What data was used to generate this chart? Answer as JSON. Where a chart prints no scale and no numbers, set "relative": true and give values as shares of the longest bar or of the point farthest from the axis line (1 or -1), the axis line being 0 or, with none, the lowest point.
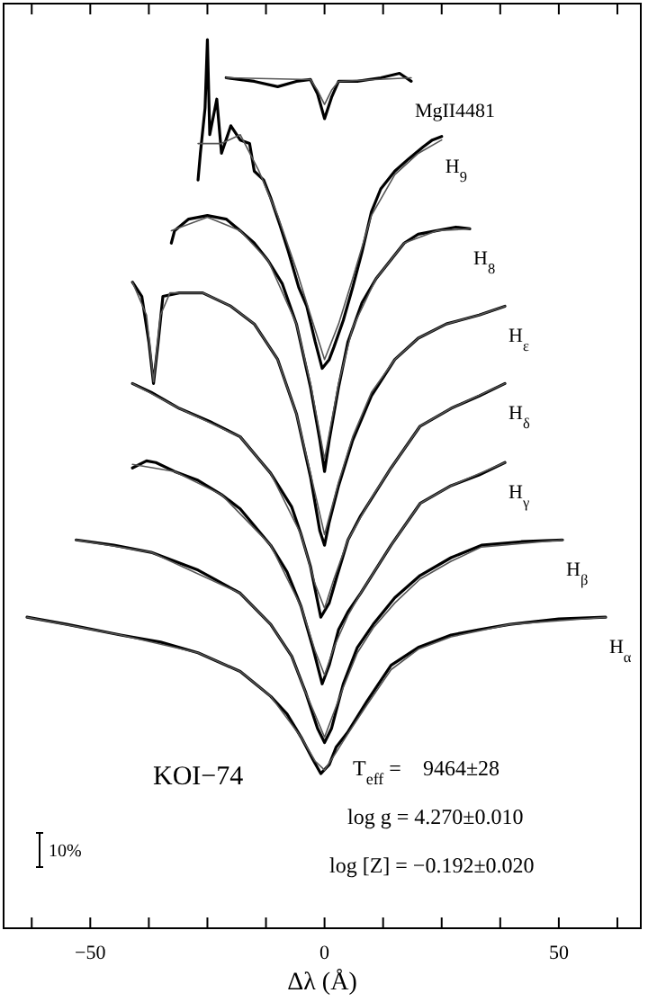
{
  "chart_data": {
    "type": "line",
    "relative": true,
    "xlabel": "Δλ (Å)",
    "xlim": [
      -68.5,
      67.5
    ],
    "xticks": [
      {
        "value": -62.5,
        "label": null
      },
      -50,
      {
        "value": -37.5,
        "label": null
      },
      {
        "value": -25,
        "label": null
      },
      {
        "value": -12.5,
        "label": null
      },
      0,
      {
        "value": 12.5,
        "label": null
      },
      {
        "value": 25,
        "label": null
      },
      {
        "value": 37.5,
        "label": null
      },
      50,
      {
        "value": 62.5,
        "label": null
      }
    ],
    "annotations": [
      "KOI−74",
      "T$_{eff}$ =    9464±28",
      "log g = 4.270±0.010",
      "log [Z] = −0.192±0.020",
      "10%"
    ],
    "series": [
      {
        "name": "MgII4481",
        "color": "#000000",
        "x": [
          -21,
          -15,
          -10,
          -6,
          -3,
          -1.5,
          0,
          1.5,
          3,
          7,
          12,
          16,
          18.5
        ],
        "values": [
          0.957,
          0.953,
          0.947,
          0.953,
          0.955,
          0.939,
          0.911,
          0.935,
          0.953,
          0.953,
          0.957,
          0.962,
          0.953
        ]
      },
      {
        "color": "#555555",
        "x": [
          -21,
          -3,
          -1.5,
          0,
          1.5,
          3,
          18.5
        ],
        "values": [
          0.957,
          0.955,
          0.943,
          0.927,
          0.943,
          0.953,
          0.957
        ]
      },
      {
        "name": "H$_{9}$",
        "color": "#000000",
        "x": [
          -27,
          -26.5,
          -25.5,
          -25,
          -24.5,
          -23,
          -22,
          -20,
          -18,
          -16,
          -15,
          -13,
          -11.5,
          -9.5,
          -7.7,
          -5.5,
          -3.8,
          -2,
          -0.5,
          1,
          2,
          4,
          6,
          8,
          10,
          12,
          15,
          18,
          21,
          23,
          25
        ],
        "values": [
          0.842,
          0.872,
          0.923,
          1,
          0.893,
          0.933,
          0.872,
          0.903,
          0.887,
          0.883,
          0.852,
          0.842,
          0.822,
          0.791,
          0.761,
          0.721,
          0.7,
          0.66,
          0.63,
          0.64,
          0.654,
          0.684,
          0.721,
          0.761,
          0.806,
          0.832,
          0.852,
          0.866,
          0.879,
          0.887,
          0.891
        ]
      },
      {
        "color": "#555555",
        "x": [
          -27,
          -22,
          -18,
          -14,
          -10,
          -6,
          -3,
          0,
          3,
          6,
          10,
          15,
          20,
          25
        ],
        "values": [
          0.883,
          0.883,
          0.893,
          0.852,
          0.802,
          0.741,
          0.69,
          0.64,
          0.68,
          0.731,
          0.802,
          0.848,
          0.872,
          0.887
        ]
      },
      {
        "name": "H$_{8}$",
        "color": "#000000",
        "x": [
          -32.7,
          -32,
          -29,
          -25,
          -21,
          -18,
          -15,
          -12,
          -9,
          -6,
          -3,
          -1,
          0,
          1,
          3,
          5,
          8,
          11,
          14,
          17,
          20,
          24,
          28,
          31
        ],
        "values": [
          0.771,
          0.785,
          0.798,
          0.802,
          0.798,
          0.785,
          0.771,
          0.751,
          0.725,
          0.68,
          0.609,
          0.549,
          0.514,
          0.549,
          0.609,
          0.66,
          0.704,
          0.731,
          0.751,
          0.771,
          0.781,
          0.785,
          0.789,
          0.787
        ]
      },
      {
        "color": "#555555",
        "x": [
          -32.7,
          -25,
          -18,
          -12,
          -6,
          -3,
          0,
          3,
          6,
          11,
          17,
          24,
          31
        ],
        "values": [
          0.785,
          0.8,
          0.785,
          0.751,
          0.68,
          0.613,
          0.528,
          0.613,
          0.676,
          0.731,
          0.771,
          0.785,
          0.787
        ]
      },
      {
        "name": "H$_{ε}$",
        "color": "#000000",
        "x": [
          -41,
          -39,
          -37.5,
          -36.5,
          -35.5,
          -34.5,
          -31,
          -26,
          -20,
          -15,
          -10,
          -6,
          -3,
          -1,
          0,
          1,
          3,
          6,
          10,
          15,
          20,
          26,
          33,
          38.5
        ],
        "values": [
          0.727,
          0.711,
          0.66,
          0.613,
          0.66,
          0.711,
          0.715,
          0.715,
          0.7,
          0.68,
          0.64,
          0.579,
          0.508,
          0.447,
          0.431,
          0.457,
          0.498,
          0.549,
          0.599,
          0.64,
          0.664,
          0.68,
          0.69,
          0.7
        ]
      },
      {
        "color": "#555555",
        "x": [
          -41,
          -38,
          -36.5,
          -35,
          -33,
          -26,
          -20,
          -15,
          -10,
          -6,
          -3,
          0,
          3,
          6,
          10,
          15,
          20,
          26,
          33,
          38.5
        ],
        "values": [
          0.727,
          0.69,
          0.615,
          0.69,
          0.715,
          0.715,
          0.7,
          0.68,
          0.64,
          0.579,
          0.512,
          0.443,
          0.502,
          0.553,
          0.603,
          0.64,
          0.664,
          0.68,
          0.69,
          0.7
        ]
      },
      {
        "name": "H$_{δ}$",
        "color": "#000000",
        "x": [
          -41,
          -37,
          -31,
          -24,
          -18,
          -11.5,
          -7,
          -5,
          -3,
          -0.8,
          1,
          2.7,
          5,
          7.7,
          14.2,
          20.4,
          27,
          33,
          38.5
        ],
        "values": [
          0.613,
          0.603,
          0.585,
          0.569,
          0.553,
          0.512,
          0.474,
          0.443,
          0.407,
          0.35,
          0.366,
          0.397,
          0.437,
          0.464,
          0.518,
          0.565,
          0.585,
          0.599,
          0.613
        ]
      },
      {
        "color": "#555555",
        "x": [
          -41,
          -31,
          -18,
          -11.5,
          -5,
          -2,
          0,
          2,
          5,
          10,
          14.2,
          20.4,
          27,
          38.5
        ],
        "values": [
          0.613,
          0.585,
          0.553,
          0.512,
          0.443,
          0.387,
          0.36,
          0.393,
          0.437,
          0.484,
          0.518,
          0.565,
          0.585,
          0.613
        ]
      },
      {
        "name": "H$_{γ}$",
        "color": "#000000",
        "x": [
          -41,
          -38,
          -36,
          -32,
          -27,
          -22,
          -18,
          -11.5,
          -8,
          -5,
          -2.5,
          -0.5,
          1,
          3,
          5,
          7.7,
          14.2,
          20.4,
          27,
          33,
          38.5
        ],
        "values": [
          0.518,
          0.526,
          0.524,
          0.514,
          0.504,
          0.488,
          0.472,
          0.431,
          0.401,
          0.362,
          0.316,
          0.275,
          0.296,
          0.336,
          0.356,
          0.377,
          0.431,
          0.478,
          0.498,
          0.51,
          0.524
        ]
      },
      {
        "color": "#555555",
        "x": [
          -41,
          -32,
          -22,
          -11.5,
          -5,
          -2,
          0,
          2,
          5,
          7.7,
          14.2,
          20.4,
          27,
          38.5
        ],
        "values": [
          0.522,
          0.514,
          0.488,
          0.431,
          0.362,
          0.312,
          0.285,
          0.316,
          0.352,
          0.377,
          0.431,
          0.478,
          0.498,
          0.524
        ]
      },
      {
        "name": "H$_{β}$",
        "color": "#000000",
        "x": [
          -53,
          -45,
          -37,
          -27,
          -18,
          -11.5,
          -7,
          -4,
          -1.5,
          0,
          1.5,
          4,
          7,
          10.4,
          15,
          20.4,
          27,
          33.5,
          42,
          50.8
        ],
        "values": [
          0.437,
          0.431,
          0.423,
          0.403,
          0.377,
          0.342,
          0.306,
          0.265,
          0.225,
          0.209,
          0.225,
          0.275,
          0.316,
          0.342,
          0.372,
          0.397,
          0.417,
          0.431,
          0.435,
          0.437
        ]
      },
      {
        "color": "#555555",
        "x": [
          -53,
          -37,
          -18,
          -11.5,
          -7,
          -4,
          0,
          4,
          7,
          10.4,
          15,
          20.4,
          27,
          33.5,
          50.8
        ],
        "values": [
          0.437,
          0.423,
          0.377,
          0.342,
          0.306,
          0.265,
          0.215,
          0.271,
          0.31,
          0.338,
          0.366,
          0.393,
          0.413,
          0.429,
          0.437
        ]
      },
      {
        "name": "H$_{α}$",
        "color": "#000000",
        "x": [
          -63.5,
          -55,
          -43.5,
          -35,
          -27,
          -18,
          -11.5,
          -8,
          -5,
          -2.5,
          -0.8,
          1,
          2.5,
          5,
          9,
          14.2,
          20,
          27,
          33,
          39.6,
          50,
          60
        ],
        "values": [
          0.35,
          0.342,
          0.33,
          0.322,
          0.31,
          0.289,
          0.261,
          0.241,
          0.215,
          0.19,
          0.174,
          0.184,
          0.204,
          0.221,
          0.255,
          0.296,
          0.316,
          0.33,
          0.336,
          0.342,
          0.348,
          0.35
        ]
      },
      {
        "color": "#555555",
        "x": [
          -63.5,
          -43.5,
          -27,
          -18,
          -11.5,
          -5,
          -2,
          0,
          2,
          5,
          9,
          14.2,
          20,
          27,
          39.6,
          60
        ],
        "values": [
          0.35,
          0.33,
          0.31,
          0.289,
          0.261,
          0.215,
          0.188,
          0.178,
          0.194,
          0.219,
          0.251,
          0.291,
          0.314,
          0.328,
          0.342,
          0.35
        ]
      }
    ]
  }
}
